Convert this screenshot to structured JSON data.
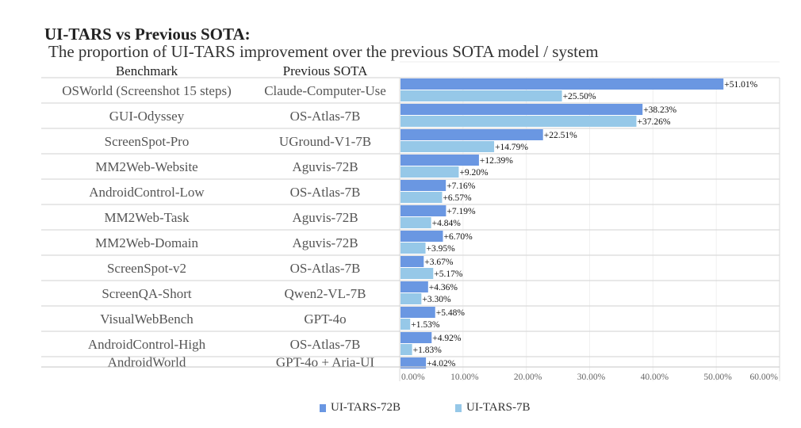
{
  "title": "UI-TARS vs Previous SOTA:",
  "subtitle": "The proportion of UI-TARS improvement over the previous SOTA model / system",
  "chart_data": {
    "type": "bar",
    "orientation": "horizontal",
    "columns": [
      "Benchmark",
      "Previous SOTA"
    ],
    "categories": [
      "OSWorld (Screenshot 15 steps)",
      "GUI-Odyssey",
      "ScreenSpot-Pro",
      "MM2Web-Website",
      "AndroidControl-Low",
      "MM2Web-Task",
      "MM2Web-Domain",
      "ScreenSpot-v2",
      "ScreenQA-Short",
      "VisualWebBench",
      "AndroidControl-High",
      "AndroidWorld"
    ],
    "previous_sota": [
      "Claude-Computer-Use",
      "OS-Atlas-7B",
      "UGround-V1-7B",
      "Aguvis-72B",
      "OS-Atlas-7B",
      "Aguvis-72B",
      "Aguvis-72B",
      "OS-Atlas-7B",
      "Qwen2-VL-7B",
      "GPT-4o",
      "OS-Atlas-7B",
      "GPT-4o + Aria-UI"
    ],
    "series": [
      {
        "name": "UI-TARS-72B",
        "color": "#6a97e2",
        "values": [
          51.01,
          38.23,
          22.51,
          12.39,
          7.16,
          7.19,
          6.7,
          3.67,
          4.36,
          5.48,
          4.92,
          4.02
        ],
        "labels": [
          "+51.01%",
          "+38.23%",
          "+22.51%",
          "+12.39%",
          "+7.16%",
          "+7.19%",
          "+6.70%",
          "+3.67%",
          "+4.36%",
          "+5.48%",
          "+4.92%",
          "+4.02%"
        ]
      },
      {
        "name": "UI-TARS-7B",
        "color": "#96c8e8",
        "values": [
          25.5,
          37.26,
          14.79,
          9.2,
          6.57,
          4.84,
          3.95,
          5.17,
          3.3,
          1.53,
          1.83,
          null
        ],
        "labels": [
          "+25.50%",
          "+37.26%",
          "+14.79%",
          "+9.20%",
          "+6.57%",
          "+4.84%",
          "+3.95%",
          "+5.17%",
          "+3.30%",
          "+1.53%",
          "+1.83%",
          null
        ]
      }
    ],
    "xlim": [
      0,
      60
    ],
    "xticks": [
      "0.00%",
      "10.00%",
      "20.00%",
      "30.00%",
      "40.00%",
      "50.00%",
      "60.00%"
    ],
    "grid": true,
    "legend": "bottom"
  }
}
